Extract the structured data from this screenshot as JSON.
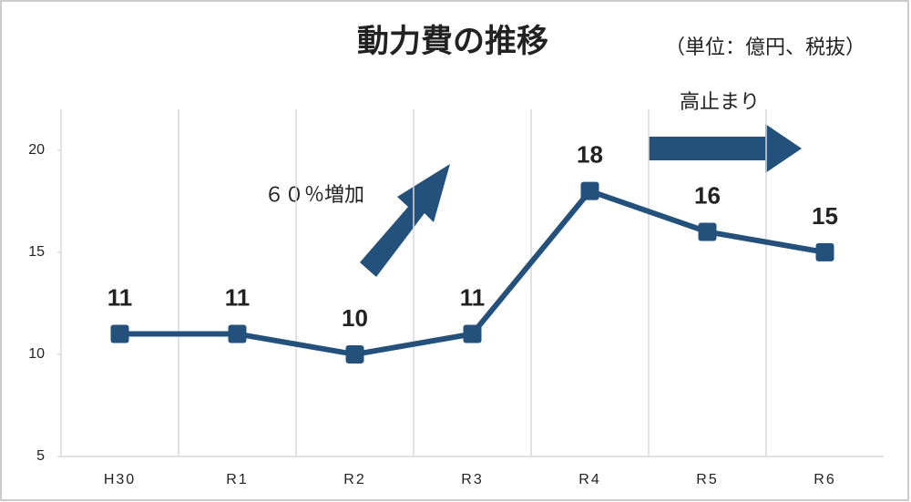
{
  "chart_data": {
    "type": "line",
    "title": "動力費の推移",
    "subtitle": "（単位：億円、税抜）",
    "annotations": [
      "６０％増加",
      "高止まり"
    ],
    "categories": [
      "H30",
      "R1",
      "R2",
      "R3",
      "R4",
      "R5",
      "R6"
    ],
    "series": [
      {
        "name": "動力費",
        "color": "#23517c",
        "values": [
          11,
          11,
          10,
          11,
          18,
          16,
          15
        ]
      }
    ],
    "ylim": [
      5,
      22
    ],
    "yticks": [
      5,
      10,
      15,
      20
    ],
    "grid": true
  }
}
